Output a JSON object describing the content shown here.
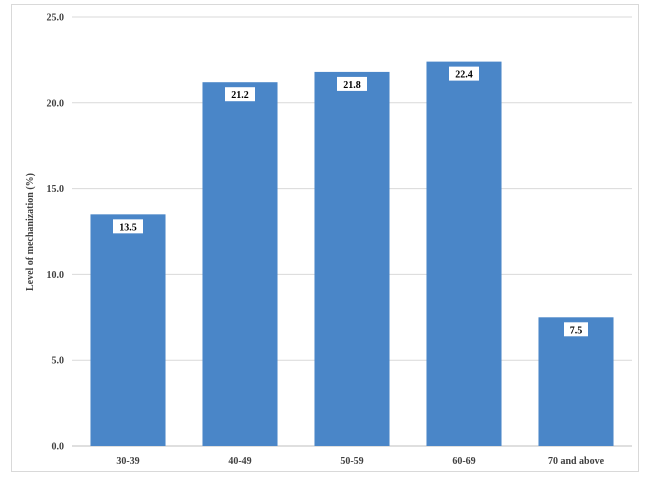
{
  "chart_data": {
    "type": "bar",
    "categories": [
      "30-39",
      "40-49",
      "50-59",
      "60-69",
      "70 and above"
    ],
    "values": [
      13.5,
      21.2,
      21.8,
      22.4,
      7.5
    ],
    "data_labels": [
      "13.5",
      "21.2",
      "21.8",
      "22.4",
      "7.5"
    ],
    "title": "",
    "xlabel": "",
    "ylabel": "Level of mechanization (%)",
    "ylim": [
      0,
      25
    ],
    "yticks": [
      "0.0",
      "5.0",
      "10.0",
      "15.0",
      "20.0",
      "25.0"
    ],
    "grid": true,
    "legend": "none",
    "colors": {
      "bar": "#4a86c8",
      "grid": "#d9d9d9",
      "text": "#404040"
    }
  }
}
